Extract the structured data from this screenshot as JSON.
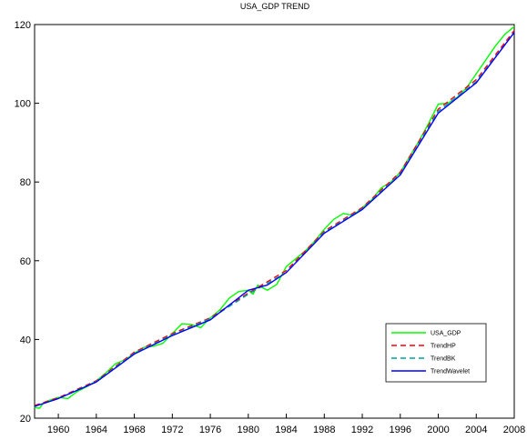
{
  "chart_data": {
    "type": "line",
    "title": "USA_GDP TREND",
    "xlabel": "",
    "ylabel": "",
    "xlim": [
      1957.5,
      2008
    ],
    "ylim": [
      20,
      120
    ],
    "xticks": [
      1960,
      1964,
      1968,
      1972,
      1976,
      1980,
      1984,
      1988,
      1992,
      1996,
      2000,
      2004,
      2008
    ],
    "yticks": [
      20,
      40,
      60,
      80,
      100,
      120
    ],
    "legend_position": "bottom-right",
    "grid": false,
    "series": [
      {
        "name": "USA_GDP",
        "color": "#00ff00",
        "style": "solid",
        "points": [
          [
            1957.5,
            22.8
          ],
          [
            1958,
            22.5
          ],
          [
            1958.5,
            24.0
          ],
          [
            1959,
            24.5
          ],
          [
            1960,
            25.3
          ],
          [
            1961,
            25.0
          ],
          [
            1962,
            26.8
          ],
          [
            1963,
            28.0
          ],
          [
            1964,
            29.5
          ],
          [
            1965,
            31.5
          ],
          [
            1966,
            33.8
          ],
          [
            1967,
            34.8
          ],
          [
            1968,
            36.5
          ],
          [
            1969,
            38.0
          ],
          [
            1970,
            38.3
          ],
          [
            1971,
            39.0
          ],
          [
            1972,
            41.5
          ],
          [
            1973,
            44.0
          ],
          [
            1974,
            43.8
          ],
          [
            1975,
            43.0
          ],
          [
            1976,
            45.5
          ],
          [
            1977,
            47.5
          ],
          [
            1978,
            50.5
          ],
          [
            1979,
            52.2
          ],
          [
            1980,
            52.5
          ],
          [
            1980.5,
            51.5
          ],
          [
            1981,
            53.8
          ],
          [
            1982,
            52.5
          ],
          [
            1983,
            54.0
          ],
          [
            1984,
            58.5
          ],
          [
            1985,
            60.5
          ],
          [
            1986,
            62.5
          ],
          [
            1987,
            65.0
          ],
          [
            1988,
            68.0
          ],
          [
            1989,
            70.5
          ],
          [
            1990,
            72.0
          ],
          [
            1991,
            71.5
          ],
          [
            1992,
            73.5
          ],
          [
            1993,
            75.5
          ],
          [
            1994,
            78.5
          ],
          [
            1995,
            80.0
          ],
          [
            1996,
            82.5
          ],
          [
            1997,
            86.5
          ],
          [
            1998,
            90.5
          ],
          [
            1999,
            95.0
          ],
          [
            2000,
            99.8
          ],
          [
            2001,
            100.0
          ],
          [
            2002,
            101.5
          ],
          [
            2003,
            104.0
          ],
          [
            2004,
            107.5
          ],
          [
            2005,
            111.0
          ],
          [
            2006,
            114.5
          ],
          [
            2007,
            117.5
          ],
          [
            2008,
            119.5
          ]
        ]
      },
      {
        "name": "TrendHP",
        "color": "#ff0000",
        "style": "dashed",
        "points": [
          [
            1957.5,
            23.2
          ],
          [
            1960,
            25.2
          ],
          [
            1964,
            29.5
          ],
          [
            1968,
            36.8
          ],
          [
            1972,
            41.5
          ],
          [
            1976,
            45.5
          ],
          [
            1980,
            51.8
          ],
          [
            1984,
            57.5
          ],
          [
            1988,
            67.5
          ],
          [
            1992,
            73.5
          ],
          [
            1996,
            82.5
          ],
          [
            2000,
            98.5
          ],
          [
            2004,
            106.0
          ],
          [
            2008,
            118.5
          ]
        ]
      },
      {
        "name": "TrendBK",
        "color": "#00a0a0",
        "style": "dashed",
        "points": [
          [
            1957.5,
            23.0
          ],
          [
            1960,
            25.0
          ],
          [
            1964,
            29.3
          ],
          [
            1968,
            36.5
          ],
          [
            1972,
            41.2
          ],
          [
            1976,
            45.3
          ],
          [
            1980,
            51.5
          ],
          [
            1984,
            57.0
          ],
          [
            1988,
            67.2
          ],
          [
            1992,
            73.2
          ],
          [
            1996,
            82.0
          ],
          [
            2000,
            98.0
          ],
          [
            2004,
            105.5
          ],
          [
            2008,
            118.0
          ]
        ]
      },
      {
        "name": "TrendWavelet",
        "color": "#0000ff",
        "style": "solid",
        "points": [
          [
            1957.5,
            23.0
          ],
          [
            1960,
            25.0
          ],
          [
            1964,
            29.2
          ],
          [
            1968,
            36.3
          ],
          [
            1972,
            41.0
          ],
          [
            1976,
            45.0
          ],
          [
            1980,
            52.5
          ],
          [
            1982,
            53.8
          ],
          [
            1984,
            57.0
          ],
          [
            1988,
            67.0
          ],
          [
            1992,
            73.0
          ],
          [
            1996,
            81.8
          ],
          [
            2000,
            97.5
          ],
          [
            2004,
            105.2
          ],
          [
            2008,
            118.0
          ]
        ]
      }
    ]
  }
}
